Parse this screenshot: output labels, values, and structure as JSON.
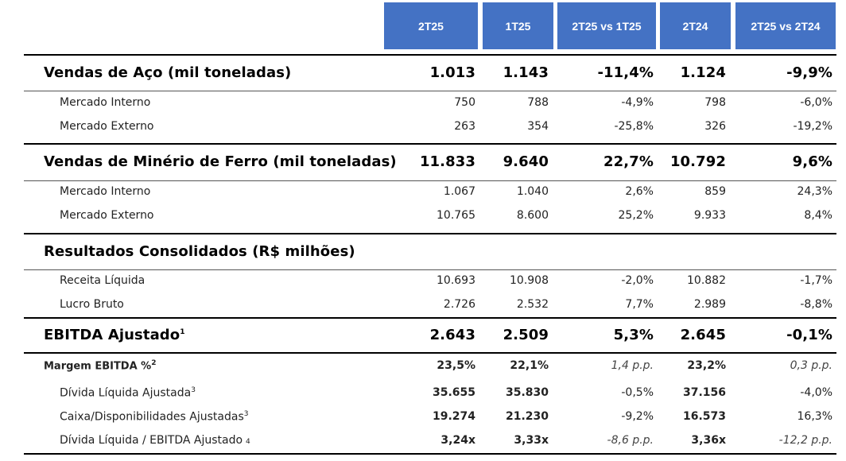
{
  "columns": [
    "2T25",
    "1T25",
    "2T25 vs 1T25",
    "2T24",
    "2T25 vs 2T24"
  ],
  "sections": {
    "aco": {
      "title": "Vendas de Aço (mil toneladas)",
      "values": [
        "1.013",
        "1.143",
        "-11,4%",
        "1.124",
        "-9,9%"
      ],
      "rows": [
        {
          "label": "Mercado Interno",
          "values": [
            "750",
            "788",
            "-4,9%",
            "798",
            "-6,0%"
          ]
        },
        {
          "label": "Mercado Externo",
          "values": [
            "263",
            "354",
            "-25,8%",
            "326",
            "-19,2%"
          ]
        }
      ]
    },
    "minerio": {
      "title": "Vendas de Minério de Ferro (mil toneladas)",
      "values": [
        "11.833",
        "9.640",
        "22,7%",
        "10.792",
        "9,6%"
      ],
      "rows": [
        {
          "label": "Mercado Interno",
          "values": [
            "1.067",
            "1.040",
            "2,6%",
            "859",
            "24,3%"
          ]
        },
        {
          "label": "Mercado Externo",
          "values": [
            "10.765",
            "8.600",
            "25,2%",
            "9.933",
            "8,4%"
          ]
        }
      ]
    },
    "consolidados": {
      "title": "Resultados Consolidados (R$ milhões)",
      "rows": [
        {
          "label": "Receita Líquida",
          "values": [
            "10.693",
            "10.908",
            "-2,0%",
            "10.882",
            "-1,7%"
          ]
        },
        {
          "label": "Lucro Bruto",
          "values": [
            "2.726",
            "2.532",
            "7,7%",
            "2.989",
            "-8,8%"
          ]
        }
      ]
    },
    "ebitda": {
      "title": "EBITDA Ajustado",
      "footnote": "1",
      "values": [
        "2.643",
        "2.509",
        "5,3%",
        "2.645",
        "-0,1%"
      ]
    },
    "margem": {
      "title": "Margem EBITDA %",
      "footnote": "2",
      "values": [
        "23,5%",
        "22,1%",
        "1,4 p.p.",
        "23,2%",
        "0,3 p.p."
      ]
    },
    "divida": {
      "label": "Dívida Líquida Ajustada",
      "footnote": "3",
      "values": [
        "35.655",
        "35.830",
        "-0,5%",
        "37.156",
        "-4,0%"
      ]
    },
    "caixa": {
      "label": "Caixa/Disponibilidades Ajustadas",
      "footnote": "3",
      "values": [
        "19.274",
        "21.230",
        "-9,2%",
        "16.573",
        "16,3%"
      ]
    },
    "alavancagem": {
      "label": "Dívida Líquida / EBITDA Ajustado",
      "footnote": "4",
      "values": [
        "3,24x",
        "3,33x",
        "-8,6 p.p.",
        "3,36x",
        "-12,2 p.p."
      ]
    }
  }
}
